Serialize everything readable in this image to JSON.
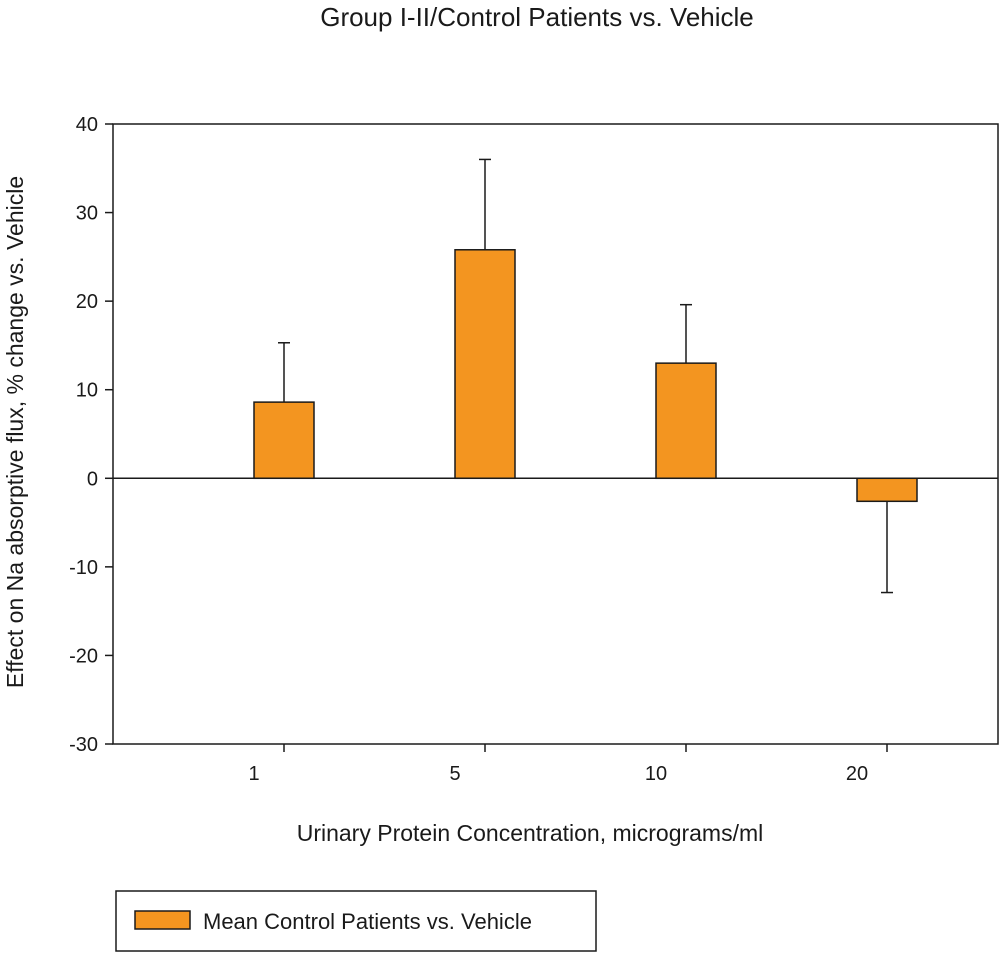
{
  "chart_data": {
    "type": "bar",
    "title": "Group I-II/Control Patients vs. Vehicle",
    "xlabel": "Urinary Protein Concentration, micrograms/ml",
    "ylabel": "Effect on Na absorptive flux, % change vs. Vehicle",
    "categories": [
      "1",
      "5",
      "10",
      "20"
    ],
    "series": [
      {
        "name": "Mean Control Patients vs. Vehicle",
        "values": [
          8.6,
          25.8,
          13.0,
          -2.6
        ],
        "error": [
          6.7,
          10.2,
          6.6,
          10.3
        ],
        "error_direction": [
          "up",
          "up",
          "up",
          "down"
        ]
      }
    ],
    "ylim": [
      -30,
      40
    ],
    "yticks": [
      40,
      30,
      20,
      10,
      0,
      -10,
      -20,
      -30
    ],
    "grid": false,
    "legend": "bottom-left",
    "colors": {
      "bar_fill": "#F39520",
      "bar_stroke": "#1a1a1a",
      "axis": "#1a1a1a"
    }
  }
}
